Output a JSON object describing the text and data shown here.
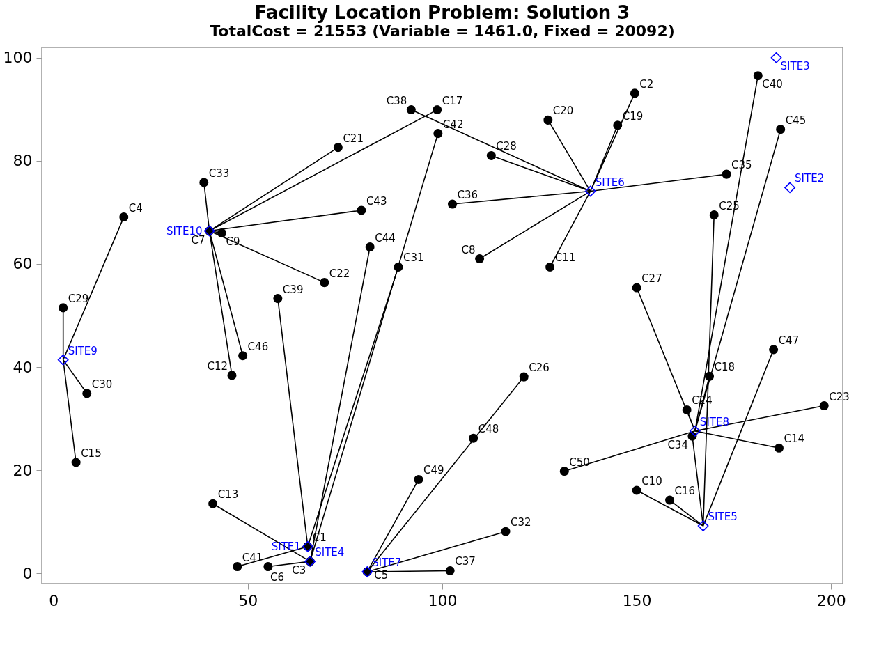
{
  "chart_data": {
    "type": "scatter",
    "title": "Facility Location Problem: Solution 3",
    "subtitle": "TotalCost =  21553 (Variable = 1461.0, Fixed = 20092)",
    "xlim": [
      -3,
      203
    ],
    "xticks": [
      0,
      50,
      100,
      150,
      200
    ],
    "ylim": [
      -2,
      102
    ],
    "yticks": [
      0,
      20,
      40,
      60,
      80,
      100
    ],
    "series": [
      {
        "type": "line",
        "color": "#000000",
        "x": [
          2.5,
          2.5,
          2.5,
          18.1,
          2.5,
          8.6,
          2.5,
          5.8
        ],
        "values": [
          41.4,
          51.5,
          41.4,
          69.1,
          41.4,
          34.9,
          41.4,
          21.5
        ]
      },
      {
        "type": "line",
        "color": "#000000",
        "x": [
          40.1,
          38.7,
          40.1,
          73.2,
          40.1,
          98.7,
          40.1,
          79.2,
          40.1,
          43.3,
          40.1,
          69.7,
          40.1,
          45.9,
          40.1,
          48.7
        ],
        "values": [
          66.4,
          75.8,
          66.4,
          82.6,
          66.4,
          89.9,
          66.4,
          70.4,
          66.4,
          66.0,
          66.4,
          56.4,
          66.4,
          38.4,
          66.4,
          42.2
        ]
      },
      {
        "type": "line",
        "color": "#000000",
        "x": [
          65.4,
          47.3,
          65.4,
          57.7,
          65.4,
          88.7
        ],
        "values": [
          5.2,
          1.3,
          5.2,
          53.3,
          5.2,
          59.4
        ]
      },
      {
        "type": "line",
        "color": "#000000",
        "x": [
          66.0,
          98.9,
          66.0,
          81.4,
          66.0,
          41.0,
          66.0,
          55.2
        ],
        "values": [
          2.3,
          85.3,
          2.3,
          63.3,
          2.3,
          13.5,
          2.3,
          1.3
        ]
      },
      {
        "type": "line",
        "color": "#000000",
        "x": [
          80.7,
          93.9,
          80.7,
          121.0,
          80.7,
          116.3,
          80.7,
          102.0
        ],
        "values": [
          0.3,
          18.2,
          0.3,
          38.1,
          0.3,
          8.1,
          0.3,
          0.5
        ]
      },
      {
        "type": "line",
        "color": "#000000",
        "x": [
          138.1,
          92.0,
          138.1,
          112.6,
          138.1,
          127.2,
          138.1,
          145.1,
          138.1,
          149.5,
          138.1,
          102.6,
          138.1,
          109.6,
          138.1,
          127.7,
          138.1,
          173.1
        ],
        "values": [
          74.1,
          89.9,
          74.1,
          81.0,
          74.1,
          87.9,
          74.1,
          86.9,
          74.1,
          93.1,
          74.1,
          71.6,
          74.1,
          61.0,
          74.1,
          59.4,
          74.1,
          77.4
        ]
      },
      {
        "type": "line",
        "color": "#000000",
        "x": [
          165.0,
          150.0,
          165.0,
          162.9,
          165.0,
          131.4,
          165.0,
          198.2,
          165.0,
          186.6,
          165.0,
          181.2,
          165.0,
          187.0,
          165.0,
          168.7
        ],
        "values": [
          27.6,
          55.4,
          27.6,
          31.7,
          27.6,
          19.8,
          27.6,
          32.5,
          27.6,
          24.3,
          27.6,
          96.5,
          27.6,
          86.1,
          27.6,
          38.2
        ]
      },
      {
        "type": "line",
        "color": "#000000",
        "x": [
          167.1,
          169.9,
          167.1,
          164.3,
          167.1,
          150.0,
          167.1,
          158.5,
          167.1,
          185.2
        ],
        "values": [
          9.2,
          69.5,
          9.2,
          26.6,
          9.2,
          16.1,
          9.2,
          14.2,
          9.2,
          43.4
        ]
      },
      {
        "color": "#000000",
        "marker": "circle",
        "x": [
          65.4,
          149.5,
          66.0,
          18.1,
          80.7,
          55.2,
          40.1,
          109.6,
          43.3,
          150.0,
          127.7,
          45.9,
          41.0,
          186.6,
          5.8,
          158.5,
          98.7,
          168.7,
          145.1,
          127.2,
          73.2,
          69.7,
          198.2,
          162.9,
          169.9,
          121.0,
          150.0,
          112.6,
          2.5,
          8.6,
          88.7,
          116.3,
          38.7,
          164.3,
          173.1,
          102.6,
          102.0,
          92.0,
          57.7,
          181.2,
          47.3,
          98.9,
          79.2,
          81.4,
          187.0,
          48.7,
          185.2,
          108.0,
          93.9,
          131.4
        ],
        "values": [
          5.2,
          93.1,
          2.3,
          69.1,
          0.3,
          1.3,
          66.4,
          61.0,
          66.0,
          16.1,
          59.4,
          38.4,
          13.5,
          24.3,
          21.5,
          14.2,
          89.9,
          38.2,
          86.9,
          87.9,
          82.6,
          56.4,
          32.5,
          31.7,
          69.5,
          38.1,
          55.4,
          81.0,
          51.5,
          34.9,
          59.4,
          8.1,
          75.8,
          26.6,
          77.4,
          71.6,
          0.5,
          89.9,
          53.3,
          96.5,
          1.3,
          85.3,
          70.4,
          63.3,
          86.1,
          42.2,
          43.4,
          26.2,
          18.2,
          19.8
        ],
        "value_labels": [
          "C1",
          "C2",
          "C3",
          "C4",
          "C5",
          "C6",
          "C7",
          "C8",
          "C9",
          "C10",
          "C11",
          "C12",
          "C13",
          "C14",
          "C15",
          "C16",
          "C17",
          "C18",
          "C19",
          "C20",
          "C21",
          "C22",
          "C23",
          "C24",
          "C25",
          "C26",
          "C27",
          "C28",
          "C29",
          "C30",
          "C31",
          "C32",
          "C33",
          "C34",
          "C35",
          "C36",
          "C37",
          "C38",
          "C39",
          "C40",
          "C41",
          "C42",
          "C43",
          "C44",
          "C45",
          "C46",
          "C47",
          "C48",
          "C49",
          "C50"
        ]
      },
      {
        "color": "#0000ff",
        "marker": "diamond",
        "x": [
          65.4,
          189.4,
          185.9,
          66.0,
          167.1,
          138.1,
          80.7,
          165.0,
          2.5,
          40.1
        ],
        "values": [
          5.2,
          74.8,
          100.0,
          2.3,
          9.2,
          74.1,
          0.3,
          27.6,
          41.4,
          66.4
        ],
        "value_labels": [
          "SITE1",
          "SITE2",
          "SITE3",
          "SITE4",
          "SITE5",
          "SITE6",
          "SITE7",
          "SITE8",
          "SITE9",
          "SITE10"
        ]
      }
    ]
  }
}
